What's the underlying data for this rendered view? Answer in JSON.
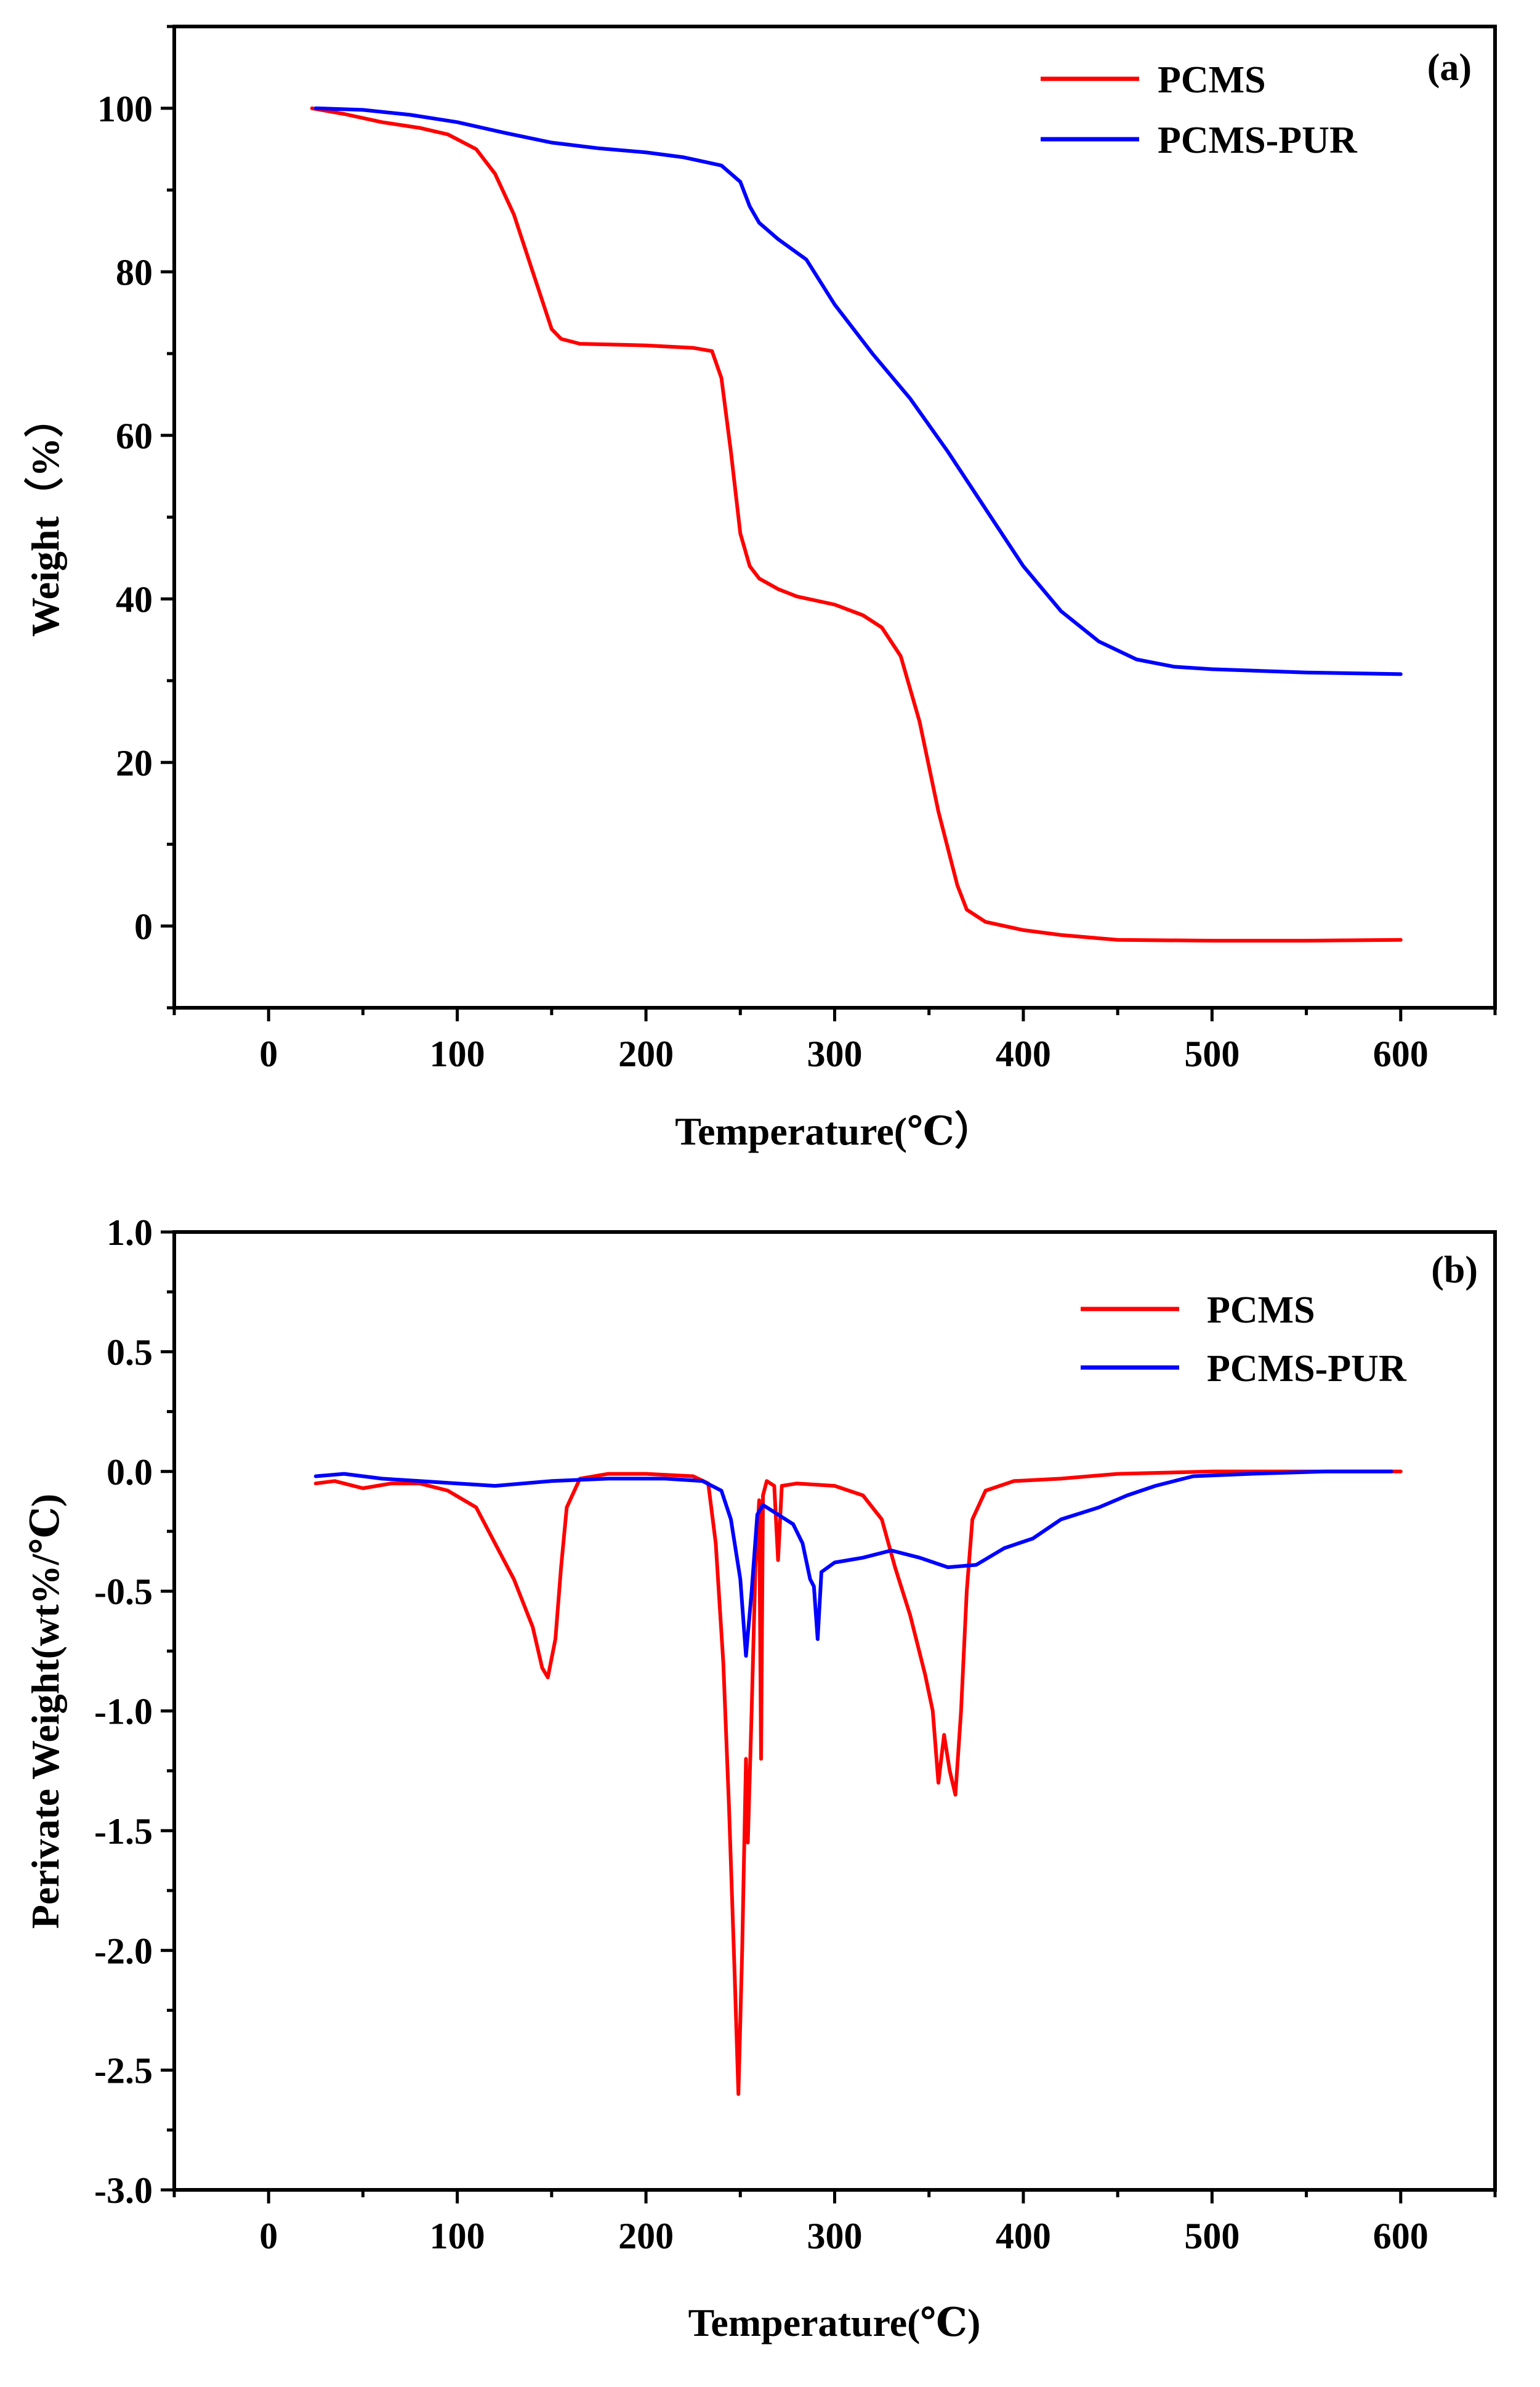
{
  "chart_data": [
    {
      "type": "line",
      "panel_label": "(a)",
      "xlabel": "Temperature(℃）",
      "ylabel": "Weight（%）",
      "xlim": [
        -50,
        650
      ],
      "ylim": [
        -10,
        110
      ],
      "xticks": [
        0,
        100,
        200,
        300,
        400,
        500,
        600
      ],
      "yticks": [
        0,
        20,
        40,
        60,
        80,
        100
      ],
      "legend_position": "top-right",
      "series": [
        {
          "name": "PCMS",
          "color": "#ff0000",
          "points": [
            [
              23,
              100
            ],
            [
              40,
              99.3
            ],
            [
              60,
              98.3
            ],
            [
              80,
              97.6
            ],
            [
              95,
              96.8
            ],
            [
              110,
              95
            ],
            [
              120,
              92
            ],
            [
              130,
              87
            ],
            [
              140,
              80
            ],
            [
              150,
              73
            ],
            [
              155,
              71.8
            ],
            [
              165,
              71.2
            ],
            [
              200,
              71
            ],
            [
              225,
              70.7
            ],
            [
              235,
              70.3
            ],
            [
              240,
              67
            ],
            [
              245,
              58
            ],
            [
              250,
              48
            ],
            [
              255,
              44
            ],
            [
              260,
              42.5
            ],
            [
              270,
              41.2
            ],
            [
              280,
              40.3
            ],
            [
              300,
              39.3
            ],
            [
              315,
              38
            ],
            [
              325,
              36.5
            ],
            [
              335,
              33
            ],
            [
              345,
              25
            ],
            [
              355,
              14
            ],
            [
              365,
              5
            ],
            [
              370,
              2
            ],
            [
              380,
              0.5
            ],
            [
              400,
              -0.5
            ],
            [
              420,
              -1.1
            ],
            [
              450,
              -1.7
            ],
            [
              500,
              -1.8
            ],
            [
              550,
              -1.8
            ],
            [
              600,
              -1.7
            ]
          ]
        },
        {
          "name": "PCMS-PUR",
          "color": "#0000ff",
          "points": [
            [
              25,
              100
            ],
            [
              50,
              99.8
            ],
            [
              75,
              99.2
            ],
            [
              100,
              98.3
            ],
            [
              125,
              97
            ],
            [
              150,
              95.8
            ],
            [
              175,
              95.1
            ],
            [
              200,
              94.6
            ],
            [
              220,
              94
            ],
            [
              240,
              93
            ],
            [
              250,
              91
            ],
            [
              255,
              88
            ],
            [
              260,
              86
            ],
            [
              270,
              84
            ],
            [
              285,
              81.5
            ],
            [
              300,
              76
            ],
            [
              320,
              70
            ],
            [
              340,
              64.5
            ],
            [
              360,
              58
            ],
            [
              380,
              51
            ],
            [
              400,
              44
            ],
            [
              420,
              38.5
            ],
            [
              440,
              34.8
            ],
            [
              460,
              32.6
            ],
            [
              480,
              31.7
            ],
            [
              500,
              31.4
            ],
            [
              550,
              31
            ],
            [
              600,
              30.8
            ]
          ]
        }
      ]
    },
    {
      "type": "line",
      "panel_label": "(b)",
      "xlabel": "Temperature(℃)",
      "ylabel": "Perivate Weight(wt%/℃)",
      "xlim": [
        -50,
        650
      ],
      "ylim": [
        -3.0,
        1.0
      ],
      "xticks": [
        0,
        100,
        200,
        300,
        400,
        500,
        600
      ],
      "yticks": [
        -3.0,
        -2.5,
        -2.0,
        -1.5,
        -1.0,
        -0.5,
        0.0,
        0.5,
        1.0
      ],
      "legend_position": "top-right",
      "series": [
        {
          "name": "PCMS",
          "color": "#ff0000",
          "points": [
            [
              25,
              -0.05
            ],
            [
              35,
              -0.04
            ],
            [
              50,
              -0.07
            ],
            [
              65,
              -0.05
            ],
            [
              80,
              -0.05
            ],
            [
              95,
              -0.08
            ],
            [
              110,
              -0.15
            ],
            [
              120,
              -0.3
            ],
            [
              130,
              -0.45
            ],
            [
              140,
              -0.65
            ],
            [
              145,
              -0.82
            ],
            [
              148,
              -0.86
            ],
            [
              152,
              -0.7
            ],
            [
              155,
              -0.4
            ],
            [
              158,
              -0.15
            ],
            [
              165,
              -0.03
            ],
            [
              180,
              -0.01
            ],
            [
              200,
              -0.01
            ],
            [
              225,
              -0.02
            ],
            [
              233,
              -0.05
            ],
            [
              237,
              -0.3
            ],
            [
              241,
              -0.8
            ],
            [
              244,
              -1.4
            ],
            [
              247,
              -2.1
            ],
            [
              249,
              -2.6
            ],
            [
              251,
              -2.0
            ],
            [
              253,
              -1.2
            ],
            [
              254,
              -1.55
            ],
            [
              256,
              -1.0
            ],
            [
              258,
              -0.4
            ],
            [
              260,
              -0.12
            ],
            [
              261,
              -1.2
            ],
            [
              262,
              -0.1
            ],
            [
              264,
              -0.04
            ],
            [
              268,
              -0.06
            ],
            [
              270,
              -0.37
            ],
            [
              272,
              -0.06
            ],
            [
              280,
              -0.05
            ],
            [
              300,
              -0.06
            ],
            [
              315,
              -0.1
            ],
            [
              325,
              -0.2
            ],
            [
              332,
              -0.4
            ],
            [
              340,
              -0.6
            ],
            [
              348,
              -0.85
            ],
            [
              352,
              -1.0
            ],
            [
              355,
              -1.3
            ],
            [
              358,
              -1.1
            ],
            [
              361,
              -1.25
            ],
            [
              364,
              -1.35
            ],
            [
              367,
              -1.0
            ],
            [
              370,
              -0.5
            ],
            [
              373,
              -0.2
            ],
            [
              380,
              -0.08
            ],
            [
              395,
              -0.04
            ],
            [
              420,
              -0.03
            ],
            [
              450,
              -0.01
            ],
            [
              500,
              0.0
            ],
            [
              550,
              0.0
            ],
            [
              600,
              0.0
            ]
          ]
        },
        {
          "name": "PCMS-PUR",
          "color": "#0000ff",
          "points": [
            [
              25,
              -0.02
            ],
            [
              40,
              -0.01
            ],
            [
              60,
              -0.03
            ],
            [
              80,
              -0.04
            ],
            [
              100,
              -0.05
            ],
            [
              120,
              -0.06
            ],
            [
              150,
              -0.04
            ],
            [
              180,
              -0.03
            ],
            [
              210,
              -0.03
            ],
            [
              230,
              -0.04
            ],
            [
              240,
              -0.08
            ],
            [
              245,
              -0.2
            ],
            [
              250,
              -0.45
            ],
            [
              253,
              -0.77
            ],
            [
              256,
              -0.5
            ],
            [
              259,
              -0.18
            ],
            [
              262,
              -0.14
            ],
            [
              270,
              -0.18
            ],
            [
              278,
              -0.22
            ],
            [
              283,
              -0.3
            ],
            [
              287,
              -0.45
            ],
            [
              289,
              -0.48
            ],
            [
              291,
              -0.7
            ],
            [
              293,
              -0.42
            ],
            [
              300,
              -0.38
            ],
            [
              315,
              -0.36
            ],
            [
              330,
              -0.33
            ],
            [
              345,
              -0.36
            ],
            [
              360,
              -0.4
            ],
            [
              375,
              -0.39
            ],
            [
              390,
              -0.32
            ],
            [
              405,
              -0.28
            ],
            [
              420,
              -0.2
            ],
            [
              440,
              -0.15
            ],
            [
              455,
              -0.1
            ],
            [
              470,
              -0.06
            ],
            [
              490,
              -0.02
            ],
            [
              520,
              -0.01
            ],
            [
              560,
              0.0
            ],
            [
              595,
              0.0
            ]
          ]
        }
      ]
    }
  ]
}
